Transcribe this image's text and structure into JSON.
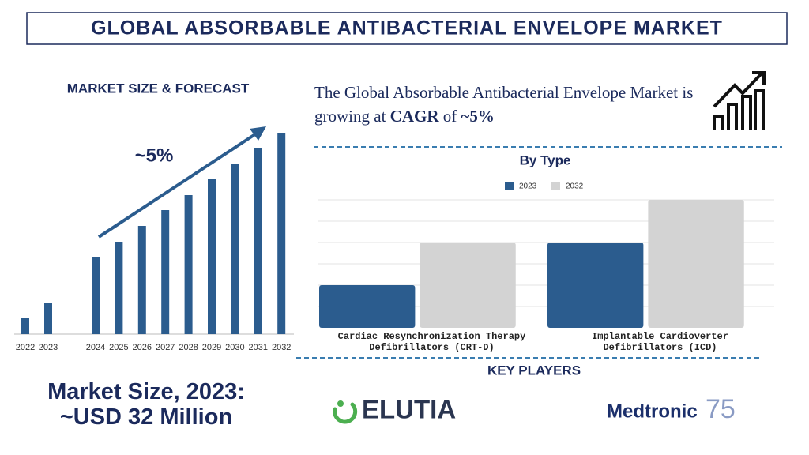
{
  "title": "GLOBAL ABSORBABLE ANTIBACTERIAL ENVELOPE MARKET",
  "headline": {
    "text": "The Global Absorbable Antibacterial Envelope Market is growing at",
    "cagr_label": "CAGR",
    "of": "of",
    "value": "~5%"
  },
  "chart_data": [
    {
      "type": "bar",
      "title": "MARKET SIZE & FORECAST",
      "annotation": "~5%",
      "categories": [
        "2022",
        "2023",
        "2024",
        "2025",
        "2026",
        "2027",
        "2028",
        "2029",
        "2030",
        "2031",
        "2032"
      ],
      "values": [
        20,
        40,
        98,
        117,
        137,
        157,
        176,
        196,
        216,
        236,
        255
      ],
      "color": "#2b5c8e"
    },
    {
      "type": "grouped-bar",
      "title": "By Type",
      "categories": [
        "Cardiac Resynchronization Therapy Defibrillators (CRT-D)",
        "Implantable Cardioverter Defibrillators (ICD)"
      ],
      "series": [
        {
          "name": "2023",
          "color": "#2b5c8e",
          "values": [
            2,
            4
          ]
        },
        {
          "name": "2032",
          "color": "#d3d3d3",
          "values": [
            4,
            6
          ]
        }
      ],
      "ylim": [
        0,
        6
      ],
      "yticks": [
        1,
        2,
        3,
        4,
        5,
        6
      ],
      "grid": true
    }
  ],
  "market_size": {
    "label": "Market Size, 2023:",
    "value": "~USD 32 Million"
  },
  "key_players": {
    "title": "KEY PLAYERS",
    "players": [
      "ELUTIA",
      "Medtronic",
      "75"
    ]
  }
}
